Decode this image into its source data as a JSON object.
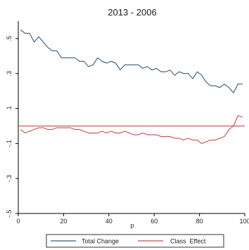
{
  "chart_data": {
    "type": "line",
    "title": "2013 - 2006",
    "xlabel": "p",
    "ylabel": "",
    "xlim": [
      0,
      100
    ],
    "ylim": [
      -0.5,
      0.6
    ],
    "xticks": [
      0,
      20,
      40,
      60,
      80,
      100
    ],
    "xtick_labels": [
      "0",
      "20",
      "40",
      "60",
      "80",
      "100"
    ],
    "yticks": [
      0.5,
      0.3,
      0.1,
      -0.1,
      -0.3,
      -0.5
    ],
    "ytick_labels": [
      ".5",
      ".3",
      ".1",
      "-.1",
      "-.3",
      "-.5"
    ],
    "grid": "none",
    "legend_position": "bottom",
    "reference_line": {
      "y": 0.0,
      "color": "#c0504d"
    },
    "series": [
      {
        "name": "Total Change",
        "color": "#3c5a78",
        "x": [
          1,
          3,
          5,
          7,
          9,
          11,
          13,
          15,
          17,
          19,
          21,
          23,
          25,
          27,
          29,
          31,
          33,
          35,
          37,
          39,
          41,
          43,
          45,
          47,
          49,
          51,
          53,
          55,
          57,
          59,
          61,
          63,
          65,
          67,
          69,
          71,
          73,
          75,
          77,
          79,
          81,
          83,
          85,
          87,
          89,
          91,
          93,
          95,
          97,
          99
        ],
        "y": [
          0.55,
          0.53,
          0.53,
          0.48,
          0.51,
          0.48,
          0.45,
          0.43,
          0.43,
          0.39,
          0.39,
          0.39,
          0.39,
          0.37,
          0.37,
          0.34,
          0.35,
          0.39,
          0.37,
          0.36,
          0.37,
          0.36,
          0.32,
          0.35,
          0.35,
          0.35,
          0.35,
          0.33,
          0.34,
          0.32,
          0.33,
          0.31,
          0.31,
          0.32,
          0.29,
          0.31,
          0.3,
          0.3,
          0.27,
          0.31,
          0.29,
          0.25,
          0.23,
          0.23,
          0.22,
          0.24,
          0.22,
          0.19,
          0.24,
          0.24
        ]
      },
      {
        "name": "Class  Effect",
        "color": "#c0504d",
        "x": [
          1,
          3,
          5,
          7,
          9,
          11,
          13,
          15,
          17,
          19,
          21,
          23,
          25,
          27,
          29,
          31,
          33,
          35,
          37,
          39,
          41,
          43,
          45,
          47,
          49,
          51,
          53,
          55,
          57,
          59,
          61,
          63,
          65,
          67,
          69,
          71,
          73,
          75,
          77,
          79,
          81,
          83,
          85,
          87,
          89,
          91,
          93,
          95,
          97,
          99
        ],
        "y": [
          -0.02,
          -0.04,
          -0.03,
          -0.02,
          -0.01,
          -0.01,
          -0.02,
          -0.02,
          -0.01,
          -0.01,
          -0.01,
          -0.01,
          -0.02,
          -0.02,
          -0.03,
          -0.04,
          -0.04,
          -0.04,
          -0.03,
          -0.04,
          -0.03,
          -0.04,
          -0.04,
          -0.03,
          -0.04,
          -0.05,
          -0.05,
          -0.04,
          -0.05,
          -0.05,
          -0.05,
          -0.06,
          -0.06,
          -0.06,
          -0.07,
          -0.07,
          -0.08,
          -0.07,
          -0.08,
          -0.08,
          -0.1,
          -0.09,
          -0.08,
          -0.08,
          -0.07,
          -0.06,
          -0.02,
          0.0,
          0.06,
          0.05
        ]
      }
    ]
  }
}
